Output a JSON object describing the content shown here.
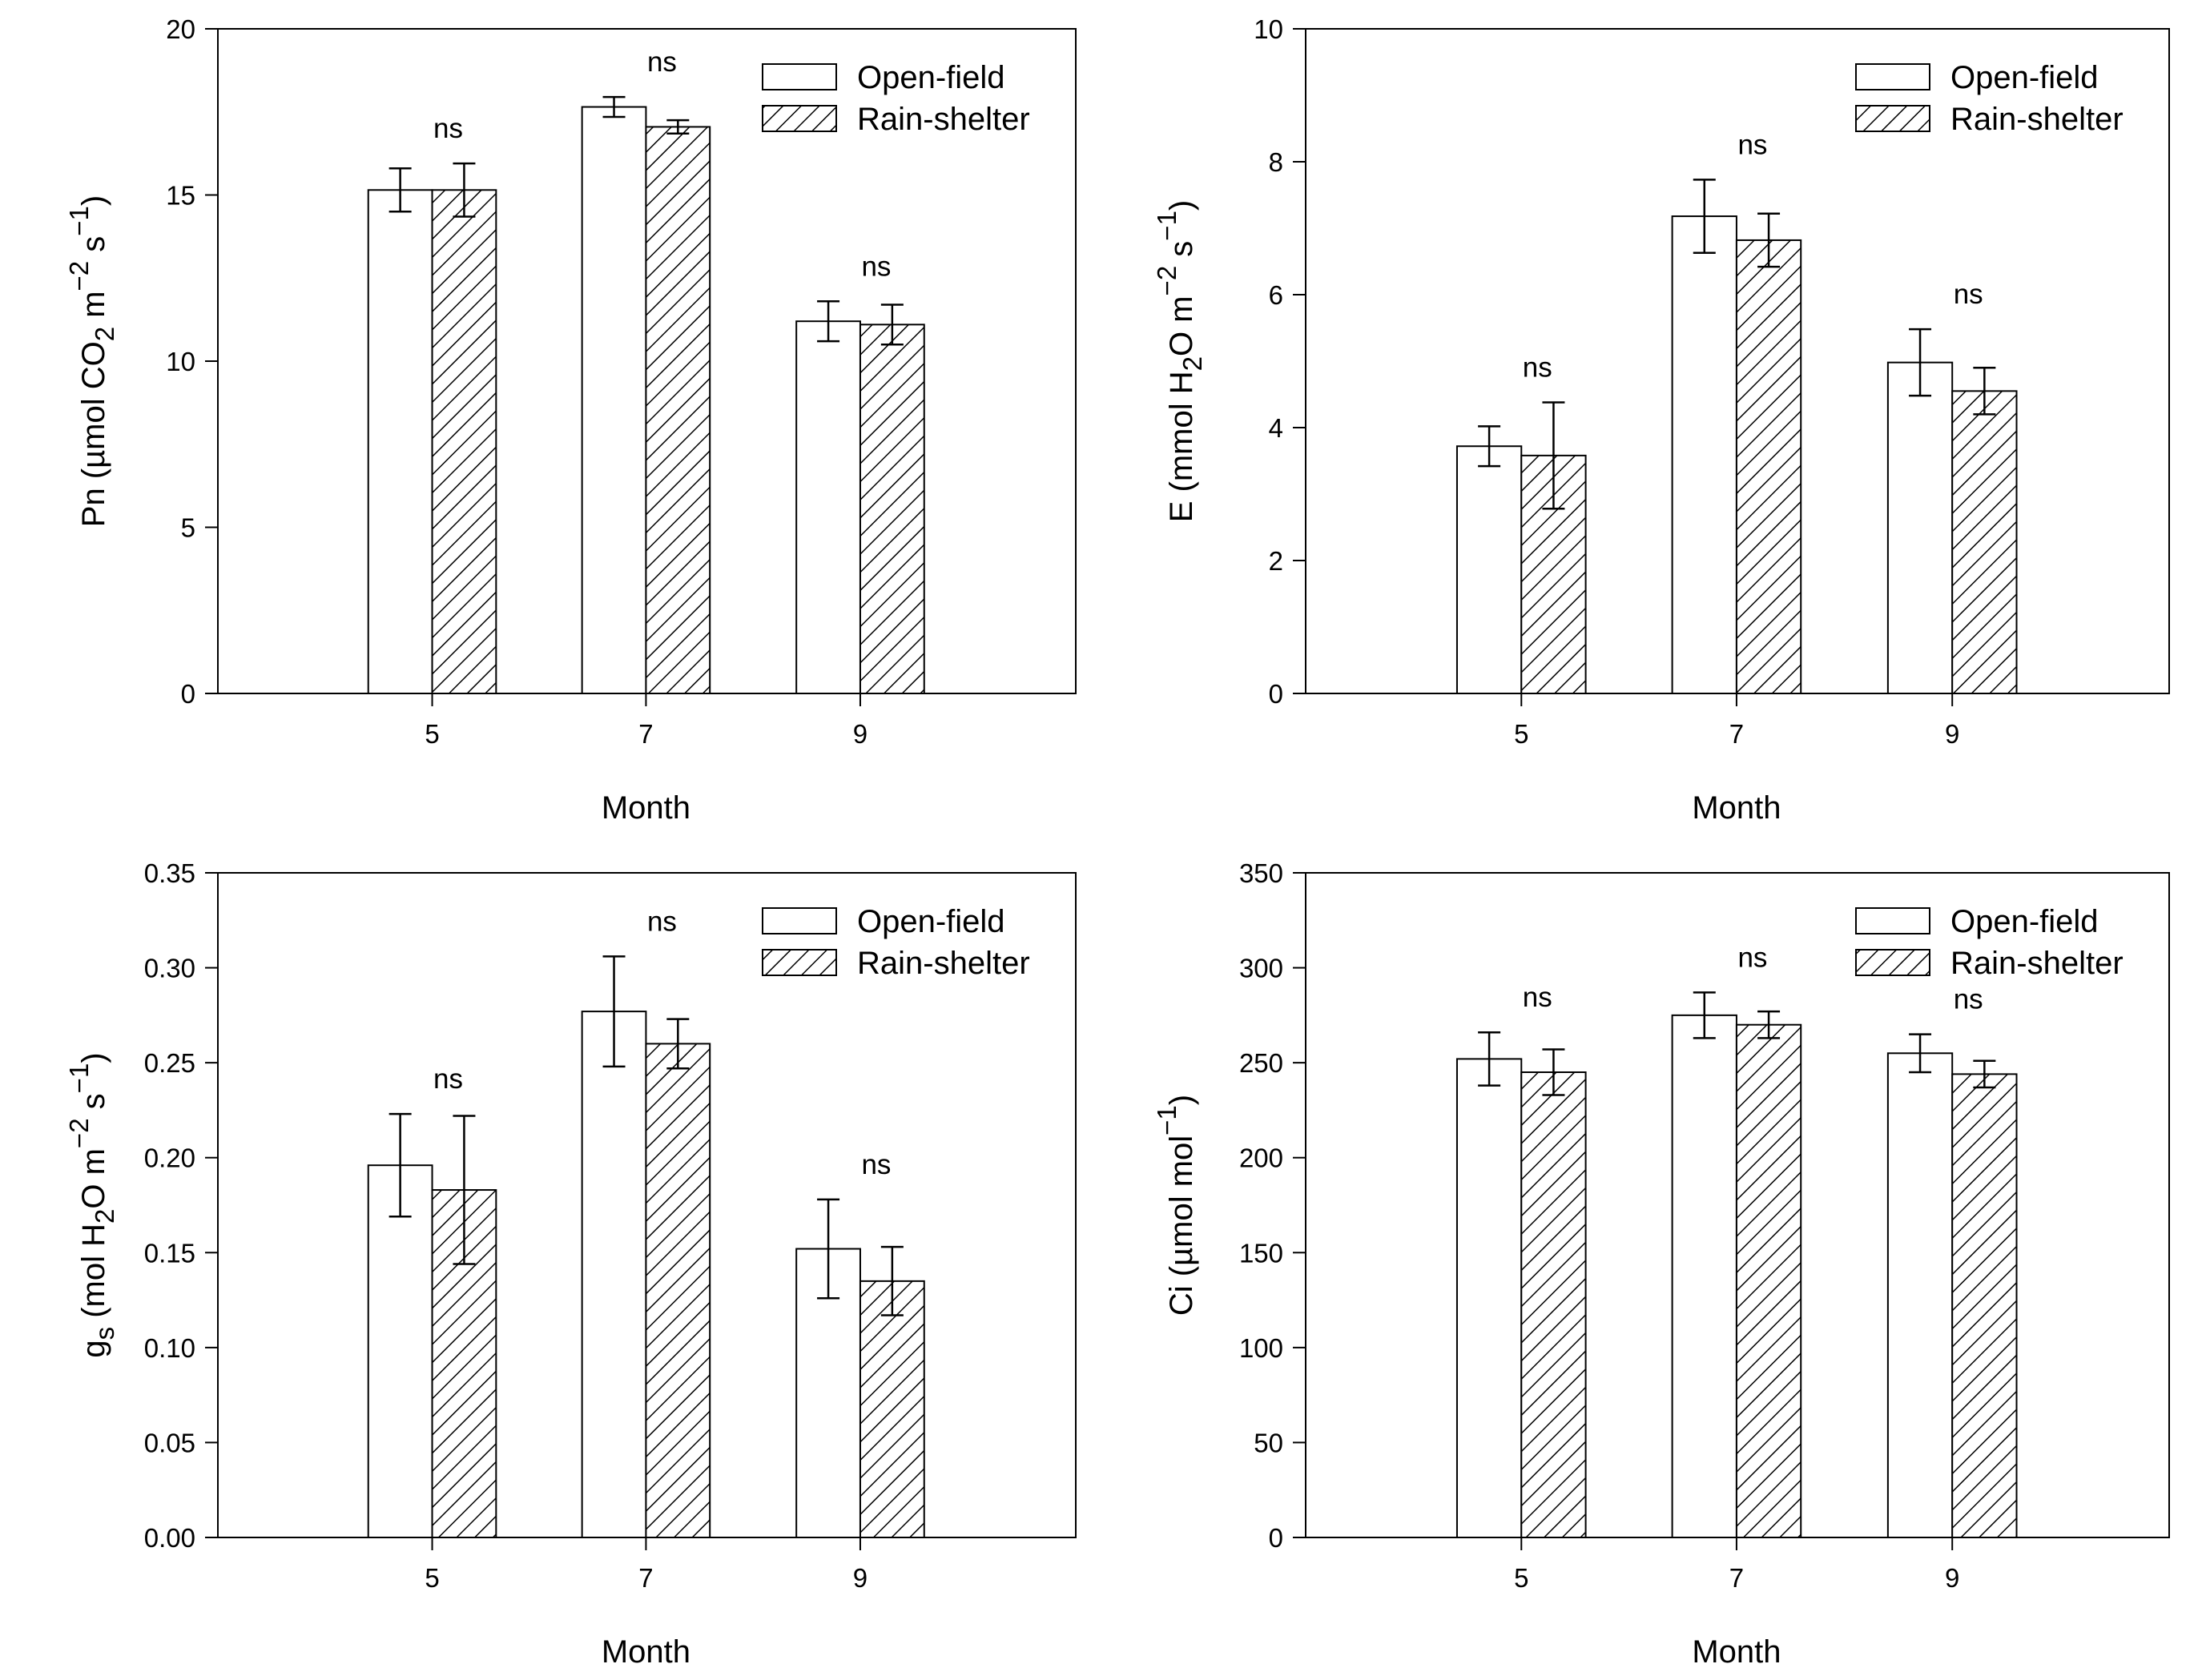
{
  "chart_data": [
    {
      "id": "pn",
      "type": "bar",
      "xlabel": "Month",
      "ylabel": {
        "prefix": "Pn (µmol CO",
        "sub": "2",
        "mid": " m",
        "sup1": "−2",
        "mid2": " s",
        "sup2": "−1",
        "suffix": ")"
      },
      "categories": [
        "5",
        "7",
        "9"
      ],
      "ylim": [
        0,
        20
      ],
      "yticks": [
        "0",
        "5",
        "10",
        "15",
        "20"
      ],
      "tick_values": [
        0,
        5,
        10,
        15,
        20
      ],
      "series": [
        {
          "name": "Open-field",
          "pattern": "open",
          "values": [
            15.15,
            17.65,
            11.2
          ],
          "errors": [
            0.65,
            0.3,
            0.6
          ]
        },
        {
          "name": "Rain-shelter",
          "pattern": "hatch",
          "values": [
            15.15,
            17.05,
            11.1
          ],
          "errors": [
            0.8,
            0.2,
            0.6
          ]
        }
      ],
      "significance": [
        "ns",
        "ns",
        "ns"
      ],
      "legend_position": "top-right"
    },
    {
      "id": "e",
      "type": "bar",
      "xlabel": "Month",
      "ylabel": {
        "prefix": "E (mmol H",
        "sub": "2",
        "mid": "O m",
        "sup1": "−2",
        "mid2": " s",
        "sup2": "−1",
        "suffix": ")"
      },
      "categories": [
        "5",
        "7",
        "9"
      ],
      "ylim": [
        0,
        10
      ],
      "yticks": [
        "0",
        "2",
        "4",
        "6",
        "8",
        "10"
      ],
      "tick_values": [
        0,
        2,
        4,
        6,
        8,
        10
      ],
      "series": [
        {
          "name": "Open-field",
          "pattern": "open",
          "values": [
            3.72,
            7.18,
            4.98
          ],
          "errors": [
            0.3,
            0.55,
            0.5
          ]
        },
        {
          "name": "Rain-shelter",
          "pattern": "hatch",
          "values": [
            3.58,
            6.82,
            4.55
          ],
          "errors": [
            0.8,
            0.4,
            0.35
          ]
        }
      ],
      "significance": [
        "ns",
        "ns",
        "ns"
      ],
      "legend_position": "top-right"
    },
    {
      "id": "gs",
      "type": "bar",
      "xlabel": "Month",
      "ylabel": {
        "prefix": "g",
        "sub": "s",
        "mid": " (mol H",
        "sub2": "2",
        "mid2b": "O m",
        "sup1": "−2",
        "mid2": " s",
        "sup2": "−1",
        "suffix": ")"
      },
      "categories": [
        "5",
        "7",
        "9"
      ],
      "ylim": [
        0,
        0.35
      ],
      "yticks": [
        "0.00",
        "0.05",
        "0.10",
        "0.15",
        "0.20",
        "0.25",
        "0.30",
        "0.35"
      ],
      "tick_values": [
        0,
        0.05,
        0.1,
        0.15,
        0.2,
        0.25,
        0.3,
        0.35
      ],
      "series": [
        {
          "name": "Open-field",
          "pattern": "open",
          "values": [
            0.196,
            0.277,
            0.152
          ],
          "errors": [
            0.027,
            0.029,
            0.026
          ]
        },
        {
          "name": "Rain-shelter",
          "pattern": "hatch",
          "values": [
            0.183,
            0.26,
            0.135
          ],
          "errors": [
            0.039,
            0.013,
            0.018
          ]
        }
      ],
      "significance": [
        "ns",
        "ns",
        "ns"
      ],
      "legend_position": "top-right"
    },
    {
      "id": "ci",
      "type": "bar",
      "xlabel": "Month",
      "ylabel": {
        "prefix": "Ci (µmol mol",
        "sup1": "−1",
        "suffix": ")"
      },
      "categories": [
        "5",
        "7",
        "9"
      ],
      "ylim": [
        0,
        350
      ],
      "yticks": [
        "0",
        "50",
        "100",
        "150",
        "200",
        "250",
        "300",
        "350"
      ],
      "tick_values": [
        0,
        50,
        100,
        150,
        200,
        250,
        300,
        350
      ],
      "series": [
        {
          "name": "Open-field",
          "pattern": "open",
          "values": [
            252,
            275,
            255
          ],
          "errors": [
            14,
            12,
            10
          ]
        },
        {
          "name": "Rain-shelter",
          "pattern": "hatch",
          "values": [
            245,
            270,
            244
          ],
          "errors": [
            12,
            7,
            7
          ]
        }
      ],
      "significance": [
        "ns",
        "ns",
        "ns"
      ],
      "legend_position": "top-right"
    }
  ]
}
